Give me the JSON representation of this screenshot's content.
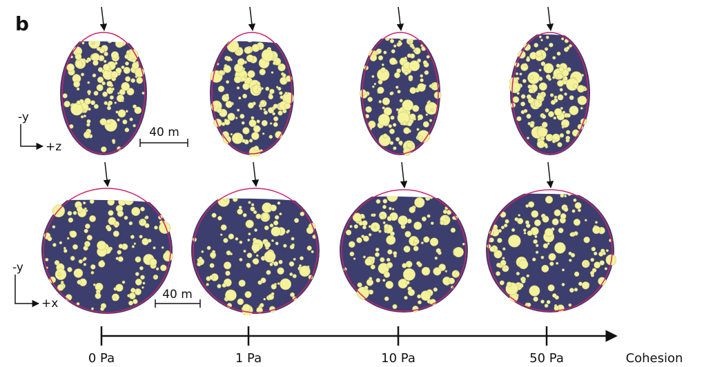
{
  "panel_label": "b",
  "top_row": {
    "axis_labels": [
      "-y",
      "+z"
    ],
    "scale_bar": "40 m"
  },
  "bottom_row": {
    "axis_labels": [
      "-y",
      "+x"
    ],
    "scale_bar": "40 m"
  },
  "cohesion_axis": {
    "ticks": [
      "0 Pa",
      "1 Pa",
      "10 Pa",
      "50 Pa"
    ],
    "title": "Cohesion"
  }
}
